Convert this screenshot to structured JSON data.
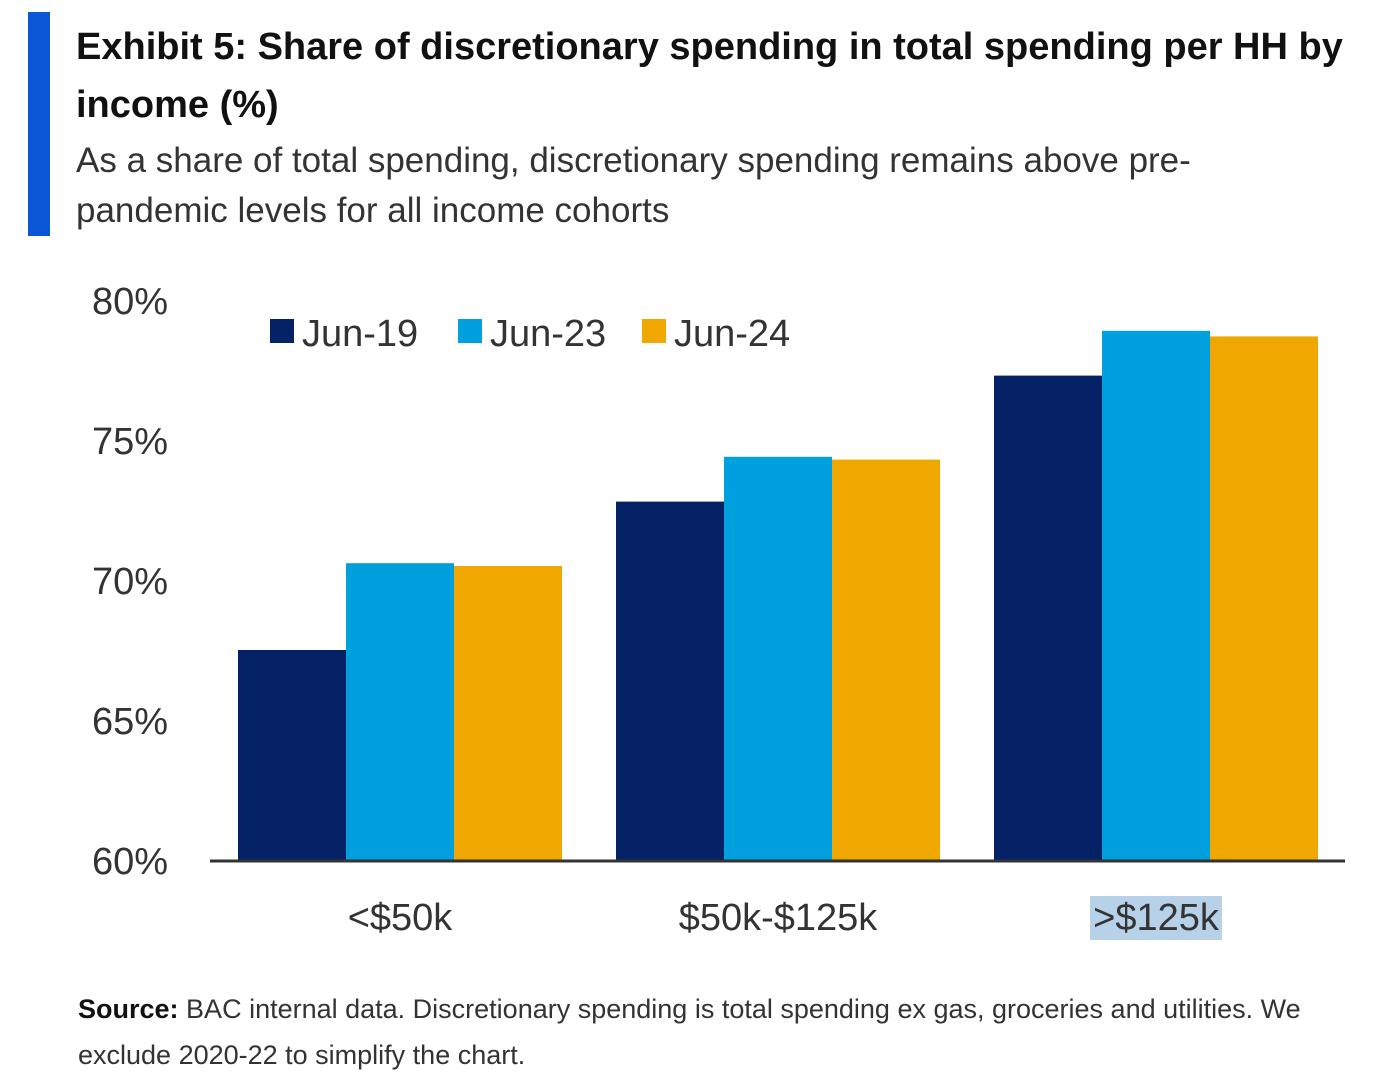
{
  "header": {
    "title": "Exhibit 5: Share of discretionary spending in total spending per HH by income (%)",
    "subtitle": "As a share of total spending, discretionary spending remains above pre-pandemic levels for all income cohorts"
  },
  "source": {
    "label": "Source:",
    "text": "BAC internal data. Discretionary spending is total spending ex gas, groceries and utilities. We exclude 2020-22 to simplify the chart."
  },
  "colors": {
    "accent": "#0a56d6",
    "jun19": "#062266",
    "jun23": "#009fde",
    "jun24": "#f0a800",
    "highlight": "#b7d2e8",
    "axis": "#333333"
  },
  "chart_data": {
    "type": "bar",
    "categories": [
      "<$50k",
      "$50k-$125k",
      ">$125k"
    ],
    "series": [
      {
        "name": "Jun-19",
        "values": [
          67.5,
          72.8,
          77.3
        ]
      },
      {
        "name": "Jun-23",
        "values": [
          70.6,
          74.4,
          78.9
        ]
      },
      {
        "name": "Jun-24",
        "values": [
          70.5,
          74.3,
          78.7
        ]
      }
    ],
    "ylim": [
      60,
      80
    ],
    "yticks": [
      "60%",
      "65%",
      "70%",
      "75%",
      "80%"
    ],
    "ytick_values": [
      60,
      65,
      70,
      75,
      80
    ],
    "grid": false,
    "legend_position": "top-left",
    "highlighted_category": ">$125k",
    "xlabel": "",
    "ylabel": ""
  }
}
